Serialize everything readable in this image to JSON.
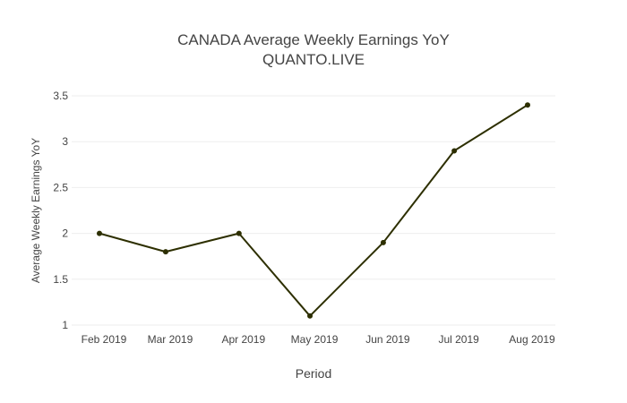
{
  "chart_data": {
    "type": "line",
    "title": "CANADA Average Weekly Earnings YoY",
    "subtitle": "QUANTO.LIVE",
    "xlabel": "Period",
    "ylabel": "Average Weekly Earnings YoY",
    "x_ticks": [
      "Feb 2019",
      "Mar 2019",
      "Apr 2019",
      "May 2019",
      "Jun 2019",
      "Jul 2019",
      "Aug 2019"
    ],
    "y_ticks": [
      "1",
      "1.5",
      "2",
      "2.5",
      "3",
      "3.5"
    ],
    "ylim": [
      1,
      3.5
    ],
    "grid": true,
    "series": [
      {
        "color": "#2d2f00",
        "points": [
          {
            "x": "2019-02-01",
            "y": 2.0
          },
          {
            "x": "2019-03-01",
            "y": 1.8
          },
          {
            "x": "2019-04-01",
            "y": 2.0
          },
          {
            "x": "2019-05-01",
            "y": 1.1
          },
          {
            "x": "2019-06-01",
            "y": 1.9
          },
          {
            "x": "2019-07-01",
            "y": 2.9
          },
          {
            "x": "2019-08-01",
            "y": 3.4
          }
        ]
      }
    ]
  }
}
